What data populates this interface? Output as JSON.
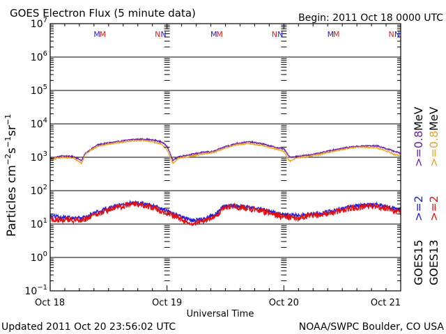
{
  "header": {
    "title": "GOES Electron Flux (5 minute data)",
    "begin": "Begin: 2011 Oct 18 0000 UTC"
  },
  "footer": {
    "updated": "Updated 2011 Oct 20 23:56:02 UTC",
    "source": "NOAA/SWPC Boulder, CO USA"
  },
  "legend": {
    "goes15": {
      "satellite": "GOES15",
      "high": ">=2",
      "low": ">=0.8",
      "unit": "MeV"
    },
    "goes13": {
      "satellite": "GOES13",
      "high": ">=2",
      "low": ">=0.8",
      "unit": "MeV"
    }
  },
  "chart_data": {
    "type": "line",
    "title": "GOES Electron Flux (5 minute data)",
    "xlabel": "Universal Time",
    "ylabel": "Particles cm^-2 s^-1 sr^-1",
    "yscale": "log",
    "ylim_exponent": [
      -1,
      7
    ],
    "xlim_days": [
      0,
      3
    ],
    "x_tick_labels": [
      "Oct 18",
      "Oct 19",
      "Oct 20",
      "Oct 21"
    ],
    "y_tick_exponents": [
      -1,
      0,
      1,
      2,
      3,
      4,
      5,
      6,
      7
    ],
    "reference_line": 1000,
    "markers": [
      {
        "label": "M",
        "day": 0.4,
        "color": "#2020dd"
      },
      {
        "label": "M",
        "day": 0.45,
        "color": "#dd2020"
      },
      {
        "label": "N",
        "day": 0.92,
        "color": "#dd2020"
      },
      {
        "label": "N",
        "day": 0.97,
        "color": "#2020dd"
      },
      {
        "label": "M",
        "day": 1.4,
        "color": "#2020dd"
      },
      {
        "label": "M",
        "day": 1.45,
        "color": "#dd2020"
      },
      {
        "label": "N",
        "day": 1.92,
        "color": "#dd2020"
      },
      {
        "label": "N",
        "day": 1.97,
        "color": "#2020dd"
      },
      {
        "label": "M",
        "day": 2.4,
        "color": "#2020dd"
      },
      {
        "label": "M",
        "day": 2.45,
        "color": "#dd2020"
      },
      {
        "label": "N",
        "day": 2.92,
        "color": "#dd2020"
      },
      {
        "label": "N",
        "day": 2.97,
        "color": "#2020dd"
      }
    ],
    "series": [
      {
        "name": "GOES15 >=0.8 MeV",
        "color": "#6a1fa8",
        "noise": 0.02,
        "x": [
          0,
          0.1,
          0.2,
          0.27,
          0.3,
          0.4,
          0.5,
          0.6,
          0.7,
          0.8,
          0.9,
          0.95,
          1.0,
          1.05,
          1.1,
          1.2,
          1.3,
          1.4,
          1.5,
          1.6,
          1.7,
          1.8,
          1.9,
          1.95,
          2.0,
          2.05,
          2.1,
          2.2,
          2.3,
          2.4,
          2.5,
          2.6,
          2.7,
          2.8,
          2.9,
          2.95,
          3.0
        ],
        "y": [
          900,
          1100,
          1050,
          800,
          1300,
          2300,
          2700,
          3000,
          3400,
          3500,
          3200,
          2900,
          2200,
          800,
          1050,
          1200,
          1400,
          1500,
          2100,
          2600,
          2900,
          2600,
          2100,
          1900,
          1800,
          1000,
          1050,
          1150,
          1300,
          1600,
          1850,
          2100,
          2200,
          2200,
          1700,
          1500,
          1300
        ]
      },
      {
        "name": "GOES13 >=0.8 MeV",
        "color": "#f0a020",
        "noise": 0.02,
        "x": [
          0,
          0.1,
          0.2,
          0.27,
          0.3,
          0.4,
          0.5,
          0.6,
          0.7,
          0.8,
          0.9,
          0.95,
          1.0,
          1.05,
          1.1,
          1.2,
          1.3,
          1.4,
          1.5,
          1.6,
          1.7,
          1.8,
          1.9,
          1.95,
          2.0,
          2.05,
          2.1,
          2.2,
          2.3,
          2.4,
          2.5,
          2.6,
          2.7,
          2.8,
          2.9,
          2.95,
          3.0
        ],
        "y": [
          850,
          1000,
          950,
          650,
          1250,
          2100,
          2500,
          2800,
          3100,
          3200,
          2800,
          2500,
          1700,
          650,
          950,
          1050,
          1250,
          1400,
          1900,
          2400,
          2600,
          2300,
          1900,
          1700,
          1500,
          750,
          950,
          1050,
          1200,
          1450,
          1700,
          1950,
          2000,
          1900,
          1450,
          1200,
          1100
        ]
      },
      {
        "name": "GOES15 >=2 MeV",
        "color": "#2020e0",
        "noise": 0.06,
        "x": [
          0,
          0.2,
          0.3,
          0.4,
          0.5,
          0.6,
          0.7,
          0.8,
          0.9,
          1.0,
          1.1,
          1.2,
          1.3,
          1.42,
          1.48,
          1.6,
          1.7,
          1.8,
          1.9,
          2.0,
          2.1,
          2.2,
          2.3,
          2.4,
          2.5,
          2.6,
          2.7,
          2.8,
          2.9,
          3.0
        ],
        "y": [
          17,
          15,
          16,
          23,
          31,
          38,
          43,
          41,
          33,
          25,
          17,
          13,
          14,
          20,
          34,
          36,
          32,
          28,
          23,
          19,
          18,
          19,
          21,
          24,
          29,
          34,
          37,
          38,
          32,
          26
        ]
      },
      {
        "name": "GOES13 >=2 MeV",
        "color": "#e01010",
        "noise": 0.09,
        "x": [
          0,
          0.2,
          0.3,
          0.4,
          0.5,
          0.6,
          0.7,
          0.8,
          0.9,
          1.0,
          1.1,
          1.2,
          1.3,
          1.42,
          1.48,
          1.6,
          1.7,
          1.8,
          1.9,
          2.0,
          2.1,
          2.2,
          2.3,
          2.4,
          2.5,
          2.6,
          2.7,
          2.8,
          2.9,
          3.0
        ],
        "y": [
          14,
          13,
          14,
          20,
          27,
          33,
          40,
          37,
          29,
          22,
          15,
          11,
          12,
          17,
          31,
          33,
          29,
          25,
          20,
          16,
          15,
          17,
          19,
          22,
          26,
          31,
          34,
          34,
          28,
          22
        ]
      }
    ]
  }
}
